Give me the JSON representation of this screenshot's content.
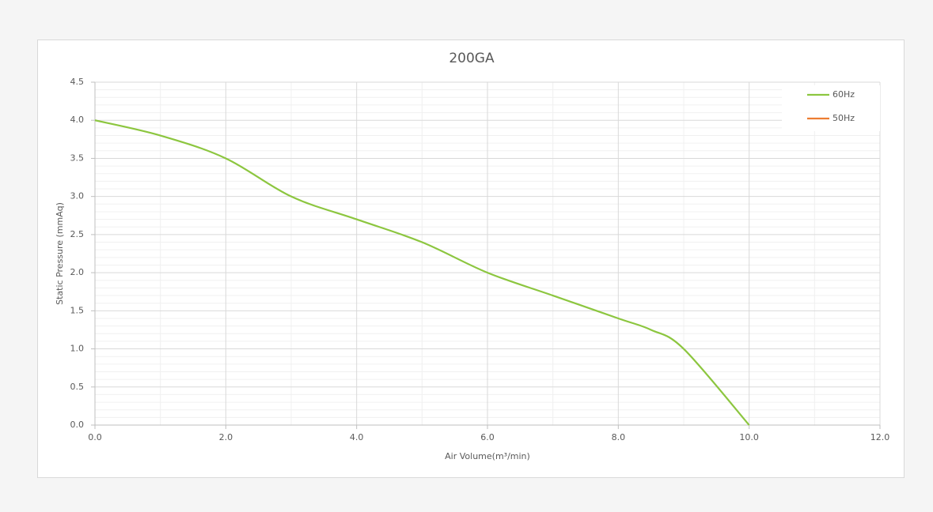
{
  "chart_data": {
    "type": "line",
    "title": "200GA",
    "x_label": "Air Volume(m³/min)",
    "y_label": "Static Pressure (mmAq)",
    "x": [
      0,
      1,
      2,
      3,
      4,
      5,
      6,
      7,
      8,
      8.5,
      9,
      10
    ],
    "series": [
      {
        "name": "60Hz",
        "color": "#8cc63f",
        "values": [
          4.0,
          3.8,
          3.5,
          3.0,
          2.7,
          2.4,
          2.0,
          1.7,
          1.4,
          1.25,
          1.0,
          0.0
        ]
      },
      {
        "name": "50Hz",
        "color": "#ed7d31",
        "values": [
          null,
          null,
          null,
          null,
          null,
          null,
          null,
          null,
          null,
          null,
          null,
          null
        ]
      }
    ],
    "xlim": [
      0,
      12
    ],
    "ylim": [
      0,
      4.5
    ],
    "xticks": [
      {
        "value": 0,
        "label": "0.0"
      },
      {
        "value": 2,
        "label": "2.0"
      },
      {
        "value": 4,
        "label": "4.0"
      },
      {
        "value": 6,
        "label": "6.0"
      },
      {
        "value": 8,
        "label": "8.0"
      },
      {
        "value": 10,
        "label": "10.0"
      },
      {
        "value": 12,
        "label": "12.0"
      }
    ],
    "yticks": [
      {
        "value": 0,
        "label": "0.0"
      },
      {
        "value": 0.5,
        "label": "0.5"
      },
      {
        "value": 1,
        "label": "1.0"
      },
      {
        "value": 1.5,
        "label": "1.5"
      },
      {
        "value": 2,
        "label": "2.0"
      },
      {
        "value": 2.5,
        "label": "2.5"
      },
      {
        "value": 3,
        "label": "3.0"
      },
      {
        "value": 3.5,
        "label": "3.5"
      },
      {
        "value": 4,
        "label": "4.0"
      },
      {
        "value": 4.5,
        "label": "4.5"
      }
    ],
    "grid": true,
    "legend": "top-right"
  }
}
